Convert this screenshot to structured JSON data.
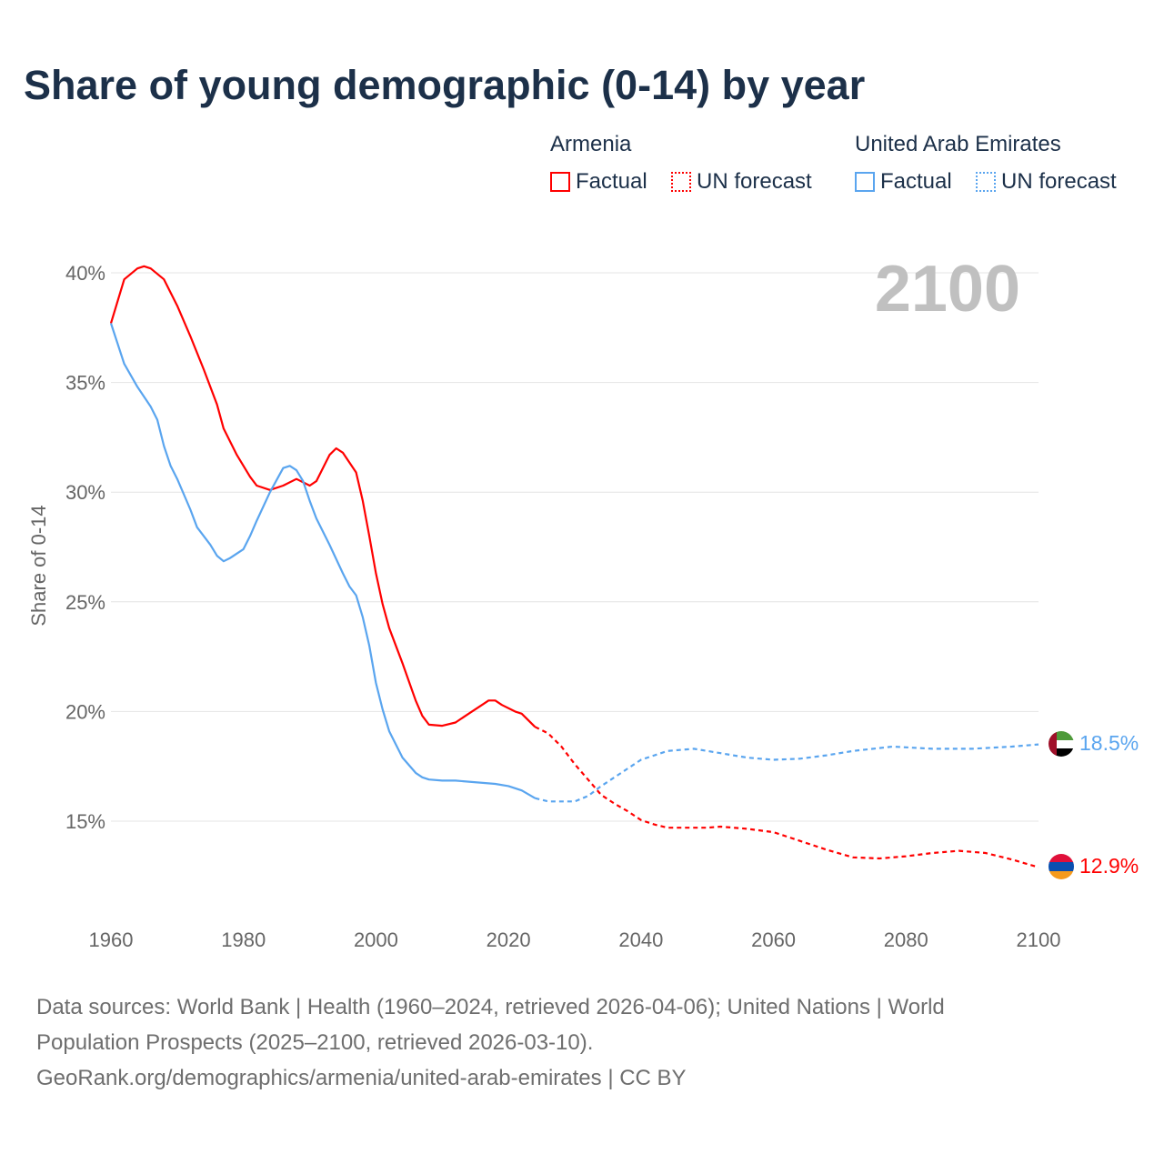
{
  "title": "Share of young demographic (0-14) by year",
  "legend": {
    "groups": [
      {
        "country": "Armenia",
        "factual": "Factual",
        "forecast": "UN forecast",
        "color": "#ff0000"
      },
      {
        "country": "United Arab Emirates",
        "factual": "Factual",
        "forecast": "UN forecast",
        "color": "#5aa5ef"
      }
    ]
  },
  "year_label": "2100",
  "footer": {
    "line1": "Data sources: World Bank | Health (1960–2024, retrieved 2026-04-06); United Nations | World",
    "line2": "Population Prospects (2025–2100, retrieved 2026-03-10).",
    "line3": "GeoRank.org/demographics/armenia/united-arab-emirates | CC BY"
  },
  "chart_data": {
    "type": "line",
    "title": "Share of young demographic (0-14) by year",
    "xlabel": "",
    "ylabel": "Share of 0-14",
    "xlim": [
      1960,
      2100
    ],
    "ylim": [
      11,
      41
    ],
    "x_ticks": [
      "1960",
      "1980",
      "2000",
      "2020",
      "2040",
      "2060",
      "2080",
      "2100"
    ],
    "y_ticks": [
      "15%",
      "20%",
      "25%",
      "30%",
      "35%",
      "40%"
    ],
    "y_tick_values": [
      15,
      20,
      25,
      30,
      35,
      40
    ],
    "grid": true,
    "forecast_start": 2024,
    "series": [
      {
        "name": "Armenia",
        "color": "#ff0000",
        "end_label": "12.9%",
        "points": [
          [
            1960,
            37.7
          ],
          [
            1962,
            39.7
          ],
          [
            1964,
            40.2
          ],
          [
            1965,
            40.3
          ],
          [
            1966,
            40.2
          ],
          [
            1968,
            39.7
          ],
          [
            1970,
            38.5
          ],
          [
            1972,
            37.1
          ],
          [
            1974,
            35.6
          ],
          [
            1976,
            34.0
          ],
          [
            1977,
            32.9
          ],
          [
            1979,
            31.7
          ],
          [
            1981,
            30.7
          ],
          [
            1982,
            30.3
          ],
          [
            1984,
            30.1
          ],
          [
            1986,
            30.3
          ],
          [
            1988,
            30.6
          ],
          [
            1990,
            30.3
          ],
          [
            1991,
            30.5
          ],
          [
            1993,
            31.7
          ],
          [
            1994,
            32.0
          ],
          [
            1995,
            31.8
          ],
          [
            1997,
            30.9
          ],
          [
            1998,
            29.6
          ],
          [
            1999,
            28.0
          ],
          [
            2000,
            26.3
          ],
          [
            2001,
            24.9
          ],
          [
            2002,
            23.8
          ],
          [
            2004,
            22.2
          ],
          [
            2006,
            20.5
          ],
          [
            2007,
            19.8
          ],
          [
            2008,
            19.4
          ],
          [
            2010,
            19.35
          ],
          [
            2012,
            19.5
          ],
          [
            2014,
            19.9
          ],
          [
            2016,
            20.3
          ],
          [
            2017,
            20.5
          ],
          [
            2018,
            20.5
          ],
          [
            2019,
            20.3
          ],
          [
            2021,
            20.0
          ],
          [
            2022,
            19.9
          ],
          [
            2024,
            19.3
          ],
          [
            2026,
            19.0
          ],
          [
            2028,
            18.4
          ],
          [
            2030,
            17.6
          ],
          [
            2032,
            16.9
          ],
          [
            2034,
            16.2
          ],
          [
            2036,
            15.8
          ],
          [
            2038,
            15.45
          ],
          [
            2040,
            15.05
          ],
          [
            2042,
            14.85
          ],
          [
            2044,
            14.7
          ],
          [
            2050,
            14.7
          ],
          [
            2052,
            14.75
          ],
          [
            2056,
            14.65
          ],
          [
            2060,
            14.5
          ],
          [
            2064,
            14.1
          ],
          [
            2068,
            13.7
          ],
          [
            2072,
            13.35
          ],
          [
            2076,
            13.3
          ],
          [
            2080,
            13.4
          ],
          [
            2084,
            13.55
          ],
          [
            2088,
            13.65
          ],
          [
            2092,
            13.55
          ],
          [
            2096,
            13.25
          ],
          [
            2100,
            12.9
          ]
        ]
      },
      {
        "name": "United Arab Emirates",
        "color": "#5aa5ef",
        "end_label": "18.5%",
        "points": [
          [
            1960,
            37.7
          ],
          [
            1962,
            35.85
          ],
          [
            1964,
            34.8
          ],
          [
            1966,
            33.9
          ],
          [
            1967,
            33.3
          ],
          [
            1968,
            32.1
          ],
          [
            1969,
            31.2
          ],
          [
            1970,
            30.6
          ],
          [
            1972,
            29.2
          ],
          [
            1973,
            28.4
          ],
          [
            1975,
            27.6
          ],
          [
            1976,
            27.1
          ],
          [
            1977,
            26.85
          ],
          [
            1978,
            27.0
          ],
          [
            1980,
            27.4
          ],
          [
            1981,
            28.0
          ],
          [
            1982,
            28.7
          ],
          [
            1984,
            30.0
          ],
          [
            1986,
            31.1
          ],
          [
            1987,
            31.2
          ],
          [
            1988,
            31.0
          ],
          [
            1989,
            30.5
          ],
          [
            1990,
            29.6
          ],
          [
            1991,
            28.8
          ],
          [
            1993,
            27.6
          ],
          [
            1995,
            26.3
          ],
          [
            1996,
            25.7
          ],
          [
            1997,
            25.3
          ],
          [
            1998,
            24.3
          ],
          [
            1999,
            23.0
          ],
          [
            2000,
            21.3
          ],
          [
            2001,
            20.1
          ],
          [
            2002,
            19.1
          ],
          [
            2004,
            17.9
          ],
          [
            2006,
            17.2
          ],
          [
            2007,
            17.0
          ],
          [
            2008,
            16.9
          ],
          [
            2010,
            16.85
          ],
          [
            2012,
            16.85
          ],
          [
            2018,
            16.7
          ],
          [
            2020,
            16.6
          ],
          [
            2022,
            16.4
          ],
          [
            2024,
            16.05
          ],
          [
            2026,
            15.9
          ],
          [
            2030,
            15.9
          ],
          [
            2032,
            16.15
          ],
          [
            2034,
            16.6
          ],
          [
            2036,
            17.0
          ],
          [
            2038,
            17.4
          ],
          [
            2040,
            17.8
          ],
          [
            2044,
            18.2
          ],
          [
            2048,
            18.3
          ],
          [
            2052,
            18.1
          ],
          [
            2056,
            17.9
          ],
          [
            2060,
            17.8
          ],
          [
            2064,
            17.85
          ],
          [
            2068,
            18.0
          ],
          [
            2072,
            18.2
          ],
          [
            2078,
            18.4
          ],
          [
            2084,
            18.3
          ],
          [
            2090,
            18.3
          ],
          [
            2096,
            18.4
          ],
          [
            2100,
            18.5
          ]
        ]
      }
    ]
  }
}
